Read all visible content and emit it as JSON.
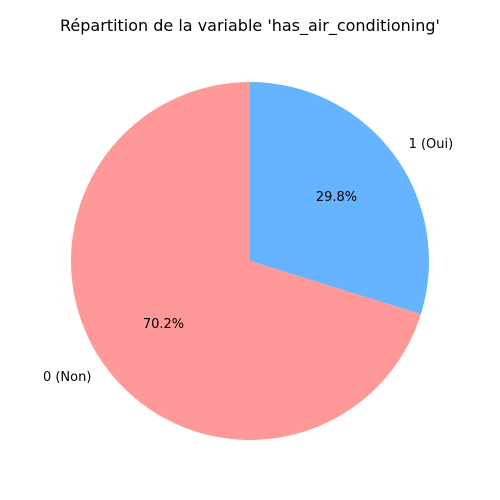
{
  "chart_data": {
    "type": "pie",
    "title": "Répartition de la variable 'has_air_conditioning'",
    "start_angle_deg": 90,
    "direction": "clockwise",
    "slices": [
      {
        "label": "1 (Oui)",
        "value": 29.8,
        "pct_label": "29.8%",
        "color": "#66b3ff"
      },
      {
        "label": "0 (Non)",
        "value": 70.2,
        "pct_label": "70.2%",
        "color": "#ff9999"
      }
    ]
  }
}
